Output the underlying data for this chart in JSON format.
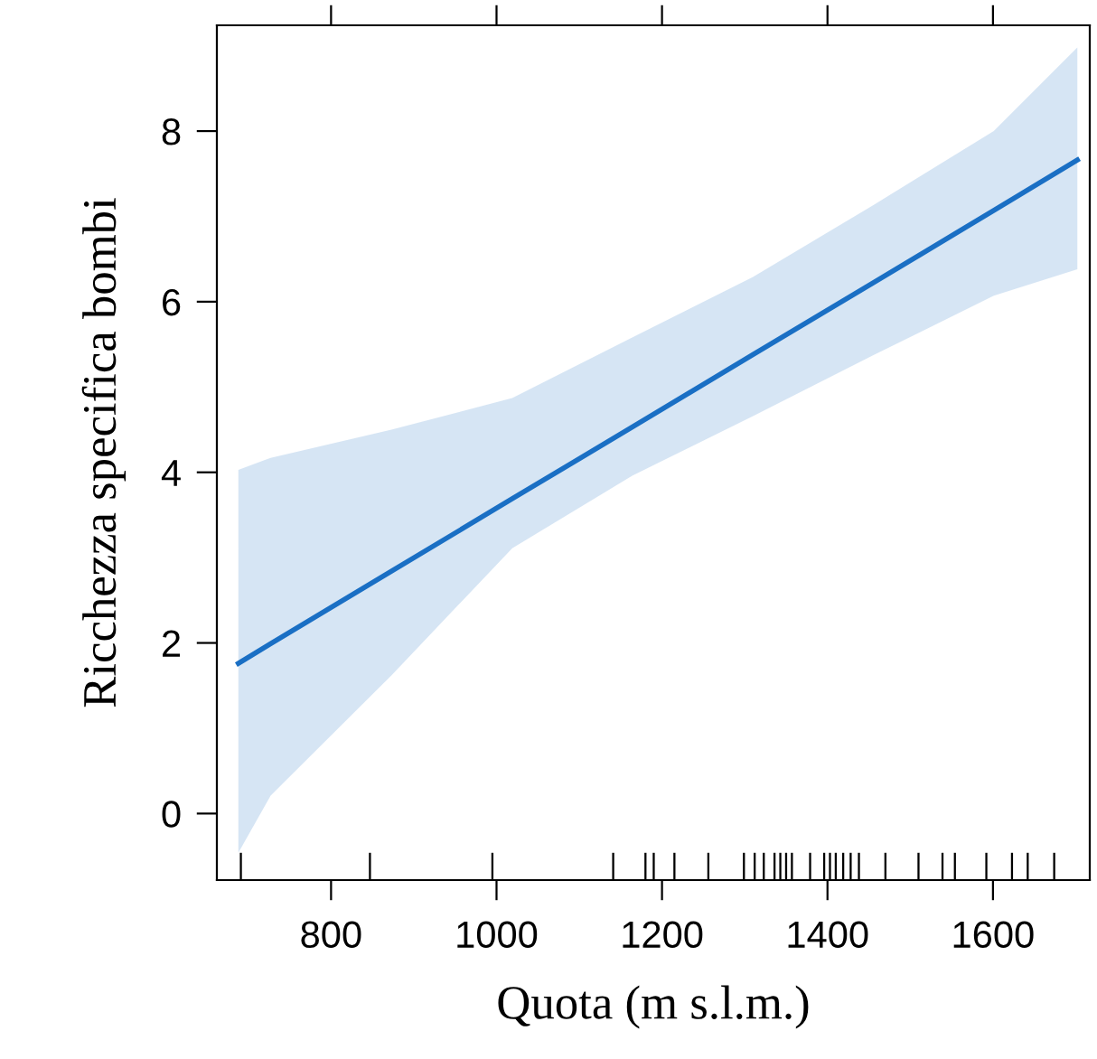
{
  "chart_data": {
    "type": "line",
    "xlabel": "Quota (m s.l.m.)",
    "ylabel": "Ricchezza specifica bombi",
    "xlim": [
      662,
      1717
    ],
    "ylim": [
      -0.78,
      9.24
    ],
    "xticks": [
      800,
      1000,
      1200,
      1400,
      1600
    ],
    "yticks": [
      0,
      2,
      4,
      6,
      8
    ],
    "grid": false,
    "legend": false,
    "series": [
      {
        "color": "#1a6fc4",
        "x": [
          688,
          727,
          873,
          1019,
          1164,
          1310,
          1455,
          1601,
          1702
        ],
        "values": [
          1.76,
          1.99,
          2.84,
          3.69,
          4.53,
          5.38,
          6.22,
          7.07,
          7.66
        ],
        "lower": [
          -0.46,
          0.21,
          1.62,
          3.11,
          3.96,
          4.66,
          5.37,
          6.07,
          6.38
        ],
        "upper": [
          4.03,
          4.17,
          4.5,
          4.87,
          5.58,
          6.29,
          7.13,
          8.0,
          8.98
        ]
      },
      {
        "type": "bar",
        "color": "#000000",
        "base": [
          -0.78,
          -0.78,
          -0.78,
          -0.78,
          -0.78,
          -0.78,
          -0.78,
          -0.78,
          -0.78,
          -0.78,
          -0.78,
          -0.78,
          -0.78,
          -0.78,
          -0.78,
          -0.78,
          -0.78,
          -0.78,
          -0.78,
          -0.78,
          -0.78,
          -0.78,
          -0.78,
          -0.78,
          -0.78,
          -0.78,
          -0.78,
          -0.78,
          -0.78,
          -0.78
        ],
        "x": [
          691,
          847,
          995,
          1141,
          1180,
          1190,
          1215,
          1256,
          1299,
          1312,
          1323,
          1336,
          1343,
          1350,
          1357,
          1379,
          1396,
          1403,
          1410,
          1419,
          1428,
          1438,
          1470,
          1510,
          1539,
          1554,
          1592,
          1623,
          1642,
          1674
        ],
        "values": [
          0.32,
          0.32,
          0.32,
          0.32,
          0.32,
          0.32,
          0.32,
          0.32,
          0.32,
          0.32,
          0.32,
          0.32,
          0.32,
          0.32,
          0.32,
          0.32,
          0.32,
          0.32,
          0.32,
          0.32,
          0.32,
          0.32,
          0.32,
          0.32,
          0.32,
          0.32,
          0.32,
          0.32,
          0.32,
          0.32
        ]
      }
    ]
  }
}
